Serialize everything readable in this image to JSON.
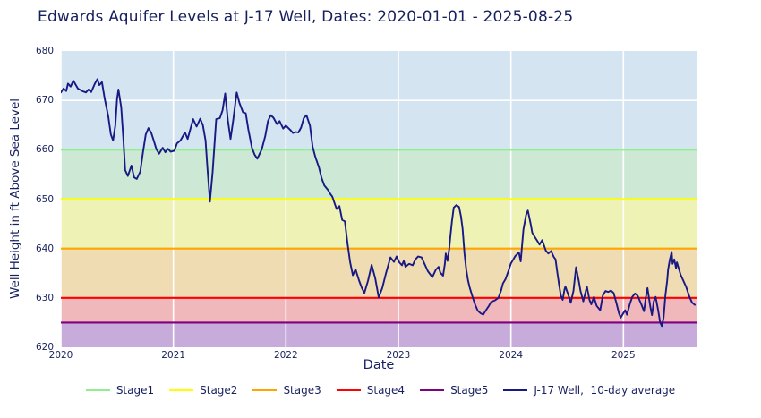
{
  "title": "Edwards Aquifer Levels at J-17 Well, Dates: 2020-01-01 - 2025-08-25",
  "axes": {
    "x_label": "Date",
    "y_label": "Well Height in ft Above Sea Level",
    "x_ticks": [
      "2020",
      "2021",
      "2022",
      "2023",
      "2024",
      "2025"
    ],
    "y_ticks": [
      "680",
      "670",
      "660",
      "650",
      "640",
      "630",
      "620"
    ]
  },
  "colors": {
    "plot_background": "#d5e4f1",
    "gridline": "#ffffff",
    "text": "#17205f",
    "series_line": "#191985"
  },
  "legend": {
    "items": [
      {
        "label": "Stage1",
        "color": "#90ee90"
      },
      {
        "label": "Stage2",
        "color": "#ffff00"
      },
      {
        "label": "Stage3",
        "color": "#ffa500"
      },
      {
        "label": "Stage4",
        "color": "#ff0000"
      },
      {
        "label": "Stage5",
        "color": "#800080"
      },
      {
        "label": "J-17 Well,  10-day average",
        "color": "#191985"
      }
    ]
  },
  "chart_data": {
    "type": "line",
    "title": "Edwards Aquifer Levels at J-17 Well, Dates: 2020-01-01 - 2025-08-25",
    "xlabel": "Date",
    "ylabel": "Well Height in ft Above Sea Level",
    "xlim": [
      2020,
      2025.65
    ],
    "ylim": [
      620,
      680
    ],
    "x_tick_values": [
      2020,
      2021,
      2022,
      2023,
      2024,
      2025
    ],
    "y_tick_values": [
      680,
      670,
      660,
      650,
      640,
      630,
      620
    ],
    "grid": true,
    "legend_position": "bottom-center",
    "stages": [
      {
        "name": "Stage1",
        "threshold": 660,
        "line_color": "#90ee90",
        "band": [
          650,
          660
        ],
        "band_color": "#cde9d5"
      },
      {
        "name": "Stage2",
        "threshold": 650,
        "line_color": "#ffff00",
        "band": [
          640,
          650
        ],
        "band_color": "#eef2b5"
      },
      {
        "name": "Stage3",
        "threshold": 640,
        "line_color": "#ffa500",
        "band": [
          630,
          640
        ],
        "band_color": "#efdcb2"
      },
      {
        "name": "Stage4",
        "threshold": 630,
        "line_color": "#ff0000",
        "band": [
          625,
          630
        ],
        "band_color": "#f1b8bc"
      },
      {
        "name": "Stage5",
        "threshold": 625,
        "line_color": "#800080",
        "band": [
          620,
          625
        ],
        "band_color": "#c7abdb"
      }
    ],
    "series": [
      {
        "name": "J-17 Well,  10-day average",
        "color": "#191985",
        "points": [
          [
            2020.0,
            671.6
          ],
          [
            2020.024,
            672.4
          ],
          [
            2020.048,
            671.9
          ],
          [
            2020.063,
            673.4
          ],
          [
            2020.087,
            672.8
          ],
          [
            2020.111,
            674.0
          ],
          [
            2020.151,
            672.4
          ],
          [
            2020.19,
            671.9
          ],
          [
            2020.222,
            671.6
          ],
          [
            2020.246,
            672.2
          ],
          [
            2020.27,
            671.7
          ],
          [
            2020.302,
            673.4
          ],
          [
            2020.325,
            674.3
          ],
          [
            2020.341,
            673.1
          ],
          [
            2020.365,
            673.7
          ],
          [
            2020.389,
            670.4
          ],
          [
            2020.421,
            666.8
          ],
          [
            2020.444,
            663.1
          ],
          [
            2020.464,
            661.9
          ],
          [
            2020.484,
            664.9
          ],
          [
            2020.5,
            670.4
          ],
          [
            2020.512,
            672.2
          ],
          [
            2020.536,
            668.6
          ],
          [
            2020.556,
            661.9
          ],
          [
            2020.571,
            655.9
          ],
          [
            2020.595,
            654.7
          ],
          [
            2020.627,
            656.8
          ],
          [
            2020.651,
            654.4
          ],
          [
            2020.675,
            654.1
          ],
          [
            2020.706,
            655.6
          ],
          [
            2020.73,
            659.5
          ],
          [
            2020.754,
            663.1
          ],
          [
            2020.778,
            664.4
          ],
          [
            2020.802,
            663.5
          ],
          [
            2020.825,
            661.9
          ],
          [
            2020.849,
            660.1
          ],
          [
            2020.873,
            659.2
          ],
          [
            2020.905,
            660.4
          ],
          [
            2020.929,
            659.5
          ],
          [
            2020.952,
            660.2
          ],
          [
            2020.976,
            659.6
          ],
          [
            2021.008,
            659.8
          ],
          [
            2021.032,
            661.3
          ],
          [
            2021.063,
            661.9
          ],
          [
            2021.103,
            663.5
          ],
          [
            2021.127,
            662.2
          ],
          [
            2021.175,
            666.2
          ],
          [
            2021.206,
            664.7
          ],
          [
            2021.238,
            666.3
          ],
          [
            2021.262,
            665.0
          ],
          [
            2021.286,
            661.9
          ],
          [
            2021.302,
            656.5
          ],
          [
            2021.325,
            649.5
          ],
          [
            2021.349,
            655.5
          ],
          [
            2021.381,
            666.2
          ],
          [
            2021.413,
            666.4
          ],
          [
            2021.437,
            668.0
          ],
          [
            2021.46,
            671.4
          ],
          [
            2021.484,
            666.0
          ],
          [
            2021.508,
            662.2
          ],
          [
            2021.532,
            666.0
          ],
          [
            2021.563,
            671.6
          ],
          [
            2021.587,
            669.5
          ],
          [
            2021.619,
            667.6
          ],
          [
            2021.643,
            667.4
          ],
          [
            2021.667,
            664.0
          ],
          [
            2021.698,
            660.4
          ],
          [
            2021.722,
            659.0
          ],
          [
            2021.746,
            658.2
          ],
          [
            2021.786,
            660.1
          ],
          [
            2021.817,
            662.8
          ],
          [
            2021.841,
            665.8
          ],
          [
            2021.865,
            667.0
          ],
          [
            2021.889,
            666.5
          ],
          [
            2021.921,
            665.2
          ],
          [
            2021.944,
            665.8
          ],
          [
            2021.976,
            664.3
          ],
          [
            2022.0,
            664.9
          ],
          [
            2022.04,
            664.0
          ],
          [
            2022.063,
            663.4
          ],
          [
            2022.087,
            663.6
          ],
          [
            2022.111,
            663.5
          ],
          [
            2022.135,
            664.5
          ],
          [
            2022.159,
            666.4
          ],
          [
            2022.183,
            667.0
          ],
          [
            2022.214,
            664.9
          ],
          [
            2022.238,
            660.6
          ],
          [
            2022.262,
            658.5
          ],
          [
            2022.294,
            656.4
          ],
          [
            2022.317,
            654.3
          ],
          [
            2022.341,
            652.8
          ],
          [
            2022.373,
            651.9
          ],
          [
            2022.397,
            651.0
          ],
          [
            2022.413,
            650.5
          ],
          [
            2022.437,
            648.9
          ],
          [
            2022.452,
            648.0
          ],
          [
            2022.476,
            648.6
          ],
          [
            2022.5,
            645.8
          ],
          [
            2022.524,
            645.5
          ],
          [
            2022.548,
            641.0
          ],
          [
            2022.571,
            637.2
          ],
          [
            2022.595,
            634.6
          ],
          [
            2022.619,
            635.8
          ],
          [
            2022.651,
            633.5
          ],
          [
            2022.675,
            632.0
          ],
          [
            2022.698,
            631.0
          ],
          [
            2022.73,
            633.5
          ],
          [
            2022.762,
            636.7
          ],
          [
            2022.794,
            634.0
          ],
          [
            2022.825,
            630.1
          ],
          [
            2022.857,
            632.0
          ],
          [
            2022.889,
            634.9
          ],
          [
            2022.929,
            638.2
          ],
          [
            2022.96,
            637.3
          ],
          [
            2022.984,
            638.4
          ],
          [
            2023.008,
            637.2
          ],
          [
            2023.032,
            636.6
          ],
          [
            2023.048,
            637.5
          ],
          [
            2023.063,
            636.3
          ],
          [
            2023.095,
            636.9
          ],
          [
            2023.127,
            636.6
          ],
          [
            2023.151,
            637.8
          ],
          [
            2023.175,
            638.4
          ],
          [
            2023.206,
            638.2
          ],
          [
            2023.238,
            636.6
          ],
          [
            2023.262,
            635.4
          ],
          [
            2023.302,
            634.2
          ],
          [
            2023.333,
            635.7
          ],
          [
            2023.357,
            636.3
          ],
          [
            2023.373,
            635.1
          ],
          [
            2023.397,
            634.5
          ],
          [
            2023.413,
            636.9
          ],
          [
            2023.421,
            639.0
          ],
          [
            2023.437,
            637.5
          ],
          [
            2023.452,
            640.0
          ],
          [
            2023.46,
            642.0
          ],
          [
            2023.476,
            645.5
          ],
          [
            2023.492,
            648.3
          ],
          [
            2023.516,
            648.8
          ],
          [
            2023.54,
            648.4
          ],
          [
            2023.556,
            646.5
          ],
          [
            2023.571,
            644.0
          ],
          [
            2023.587,
            639.0
          ],
          [
            2023.603,
            635.7
          ],
          [
            2023.619,
            633.5
          ],
          [
            2023.635,
            632.0
          ],
          [
            2023.659,
            630.2
          ],
          [
            2023.683,
            628.6
          ],
          [
            2023.706,
            627.4
          ],
          [
            2023.73,
            626.9
          ],
          [
            2023.754,
            626.6
          ],
          [
            2023.778,
            627.5
          ],
          [
            2023.802,
            628.3
          ],
          [
            2023.825,
            629.2
          ],
          [
            2023.857,
            629.5
          ],
          [
            2023.889,
            630.0
          ],
          [
            2023.913,
            631.5
          ],
          [
            2023.929,
            632.9
          ],
          [
            2023.952,
            633.8
          ],
          [
            2023.976,
            635.3
          ],
          [
            2024.0,
            637.0
          ],
          [
            2024.04,
            638.5
          ],
          [
            2024.071,
            639.2
          ],
          [
            2024.087,
            637.4
          ],
          [
            2024.111,
            643.8
          ],
          [
            2024.135,
            646.8
          ],
          [
            2024.151,
            647.7
          ],
          [
            2024.175,
            645.1
          ],
          [
            2024.19,
            643.2
          ],
          [
            2024.214,
            642.3
          ],
          [
            2024.238,
            641.4
          ],
          [
            2024.254,
            640.8
          ],
          [
            2024.278,
            641.7
          ],
          [
            2024.31,
            639.6
          ],
          [
            2024.333,
            639.0
          ],
          [
            2024.357,
            639.5
          ],
          [
            2024.381,
            638.3
          ],
          [
            2024.397,
            637.8
          ],
          [
            2024.413,
            635.0
          ],
          [
            2024.429,
            632.5
          ],
          [
            2024.444,
            630.5
          ],
          [
            2024.46,
            629.6
          ],
          [
            2024.476,
            631.7
          ],
          [
            2024.484,
            632.3
          ],
          [
            2024.516,
            630.2
          ],
          [
            2024.532,
            629.0
          ],
          [
            2024.556,
            631.4
          ],
          [
            2024.579,
            636.2
          ],
          [
            2024.603,
            633.5
          ],
          [
            2024.619,
            631.4
          ],
          [
            2024.643,
            629.3
          ],
          [
            2024.675,
            632.3
          ],
          [
            2024.698,
            629.6
          ],
          [
            2024.714,
            628.7
          ],
          [
            2024.738,
            630.2
          ],
          [
            2024.762,
            628.4
          ],
          [
            2024.794,
            627.5
          ],
          [
            2024.817,
            630.5
          ],
          [
            2024.841,
            631.4
          ],
          [
            2024.865,
            631.2
          ],
          [
            2024.889,
            631.5
          ],
          [
            2024.913,
            631.0
          ],
          [
            2024.937,
            629.0
          ],
          [
            2024.96,
            626.9
          ],
          [
            2024.976,
            626.0
          ],
          [
            2025.0,
            626.9
          ],
          [
            2025.016,
            627.5
          ],
          [
            2025.032,
            626.6
          ],
          [
            2025.056,
            628.7
          ],
          [
            2025.079,
            630.2
          ],
          [
            2025.103,
            630.9
          ],
          [
            2025.127,
            630.4
          ],
          [
            2025.159,
            628.7
          ],
          [
            2025.183,
            627.3
          ],
          [
            2025.198,
            629.9
          ],
          [
            2025.214,
            632.0
          ],
          [
            2025.238,
            628.4
          ],
          [
            2025.254,
            626.5
          ],
          [
            2025.27,
            629.3
          ],
          [
            2025.286,
            630.2
          ],
          [
            2025.31,
            627.3
          ],
          [
            2025.325,
            625.1
          ],
          [
            2025.341,
            624.3
          ],
          [
            2025.357,
            626.0
          ],
          [
            2025.373,
            630.5
          ],
          [
            2025.389,
            633.5
          ],
          [
            2025.397,
            635.7
          ],
          [
            2025.413,
            637.8
          ],
          [
            2025.429,
            639.3
          ],
          [
            2025.437,
            636.9
          ],
          [
            2025.452,
            637.8
          ],
          [
            2025.468,
            636.0
          ],
          [
            2025.476,
            637.2
          ],
          [
            2025.508,
            634.7
          ],
          [
            2025.532,
            633.5
          ],
          [
            2025.556,
            632.3
          ],
          [
            2025.587,
            630.2
          ],
          [
            2025.611,
            629.0
          ],
          [
            2025.635,
            628.6
          ]
        ]
      }
    ]
  }
}
